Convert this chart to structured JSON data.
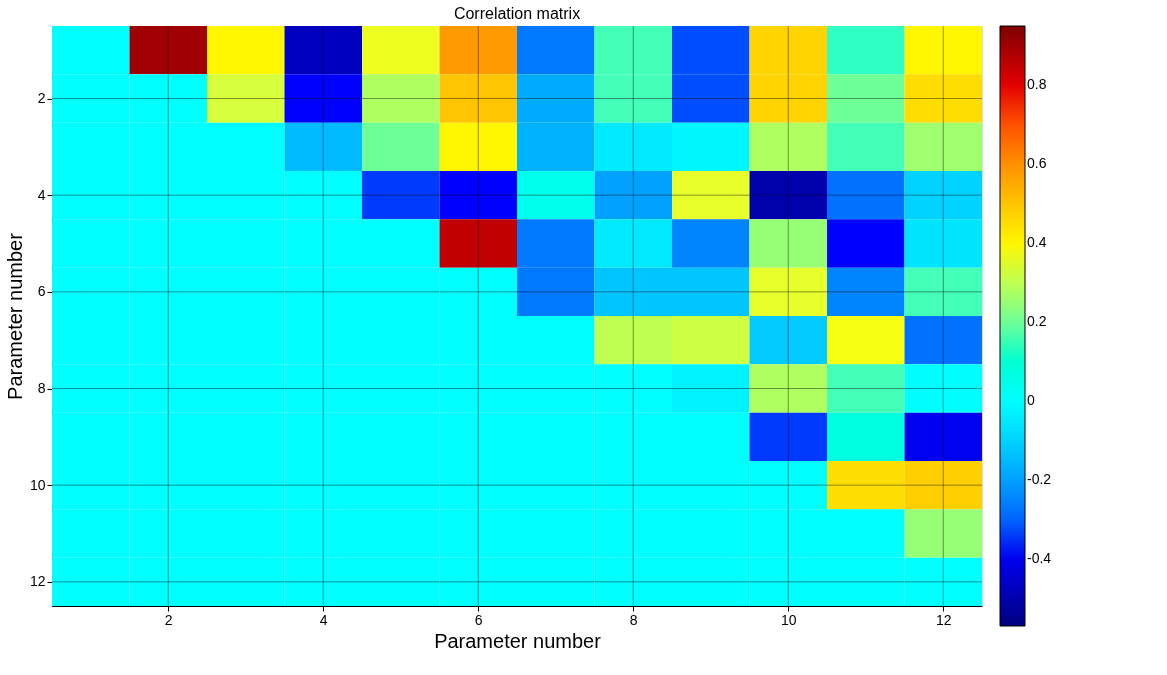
{
  "chart_data": {
    "type": "heatmap",
    "title": "Correlation matrix",
    "xlabel": "Parameter number",
    "ylabel": "Parameter number",
    "categories": [
      null,
      "2",
      null,
      "4",
      null,
      "6",
      null,
      "8",
      null,
      "10",
      null,
      "12"
    ],
    "y_categories": [
      null,
      "2",
      null,
      "4",
      null,
      "6",
      null,
      "8",
      null,
      "10",
      null,
      "12"
    ],
    "cells": [
      [
        0,
        0.9,
        0.4,
        -0.47,
        0.36,
        0.58,
        -0.27,
        0.15,
        -0.33,
        0.47,
        0.13,
        0.4
      ],
      [
        0,
        0,
        0.33,
        -0.38,
        0.28,
        0.5,
        -0.18,
        0.15,
        -0.33,
        0.47,
        0.2,
        0.45
      ],
      [
        0,
        0,
        0,
        -0.15,
        0.2,
        0.4,
        -0.17,
        -0.05,
        -0.02,
        0.28,
        0.15,
        0.26
      ],
      [
        0,
        0,
        0,
        0,
        -0.35,
        -0.38,
        0.05,
        -0.2,
        0.35,
        -0.5,
        -0.28,
        -0.1
      ],
      [
        0,
        0,
        0,
        0,
        0,
        0.85,
        -0.27,
        -0.05,
        -0.25,
        0.25,
        -0.38,
        -0.06
      ],
      [
        0,
        0,
        0,
        0,
        0,
        0,
        -0.27,
        -0.13,
        -0.13,
        0.35,
        -0.25,
        0.15
      ],
      [
        0,
        0,
        0,
        0,
        0,
        0,
        0,
        0.3,
        0.32,
        -0.12,
        0.37,
        -0.28
      ],
      [
        0,
        0,
        0,
        0,
        0,
        0,
        0,
        0,
        -0.03,
        0.28,
        0.15,
        0.01
      ],
      [
        0,
        0,
        0,
        0,
        0,
        0,
        0,
        0,
        0,
        -0.35,
        0.08,
        -0.4
      ],
      [
        0,
        0,
        0,
        0,
        0,
        0,
        0,
        0,
        0,
        0,
        0.45,
        0.48
      ],
      [
        0,
        0,
        0,
        0,
        0,
        0,
        0,
        0,
        0,
        0,
        0,
        0.25
      ],
      [
        0,
        0,
        0,
        0,
        0,
        0,
        0,
        0,
        0,
        0,
        0,
        0
      ]
    ],
    "clim": [
      -0.57,
      0.95
    ],
    "cticks": [
      -0.4,
      -0.2,
      0,
      0.2,
      0.4,
      0.6,
      0.8
    ],
    "grid": true
  }
}
